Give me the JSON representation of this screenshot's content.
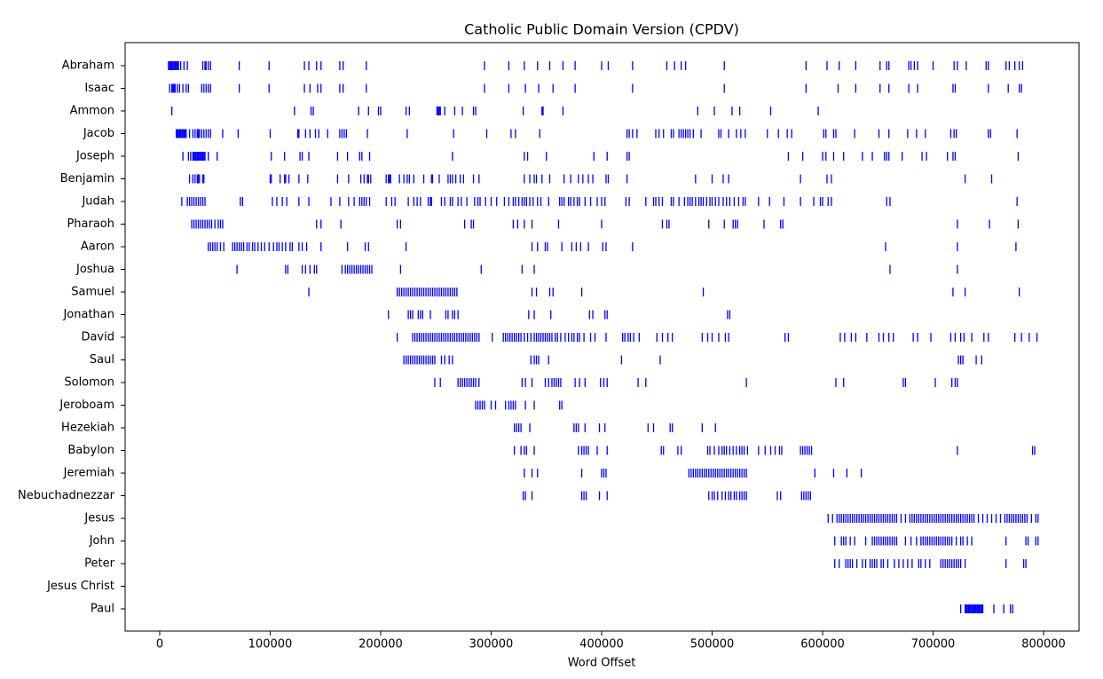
{
  "chart_data": {
    "type": "dispersion",
    "title": "Catholic Public Domain Version (CPDV)",
    "xlabel": "Word Offset",
    "categories": [
      "Abraham",
      "Isaac",
      "Ammon",
      "Jacob",
      "Joseph",
      "Benjamin",
      "Judah",
      "Pharaoh",
      "Aaron",
      "Joshua",
      "Samuel",
      "Jonathan",
      "David",
      "Saul",
      "Solomon",
      "Jeroboam",
      "Hezekiah",
      "Babylon",
      "Jeremiah",
      "Nebuchadnezzar",
      "Jesus",
      "John",
      "Peter",
      "Jesus Christ",
      "Paul"
    ],
    "offsets": [
      [
        8000,
        9000,
        10000,
        11000,
        12000,
        13000,
        14000,
        15000,
        16000,
        17000,
        19000,
        22000,
        25000,
        39000,
        41000,
        42000,
        44000,
        46000,
        72000,
        99000,
        131000,
        135000,
        142000,
        146000,
        163000,
        166000,
        187000,
        294000,
        316000,
        330000,
        342000,
        353000,
        365000,
        376000,
        400000,
        406000,
        428000,
        459000,
        466000,
        472000,
        476000,
        511000,
        585000,
        604000,
        615000,
        630000,
        652000,
        658000,
        660000,
        678000,
        680000,
        683000,
        686000,
        700000,
        719000,
        722000,
        730000,
        748000,
        750000,
        766000,
        769000,
        774000,
        778000,
        781000
      ],
      [
        9000,
        11000,
        12000,
        13000,
        14000,
        16000,
        18000,
        21000,
        24000,
        26000,
        38000,
        40000,
        42000,
        44000,
        46000,
        72000,
        99000,
        131000,
        136000,
        143000,
        146000,
        163000,
        166000,
        187000,
        294000,
        316000,
        331000,
        343000,
        356000,
        376000,
        428000,
        511000,
        585000,
        614000,
        630000,
        652000,
        660000,
        678000,
        686000,
        718000,
        720000,
        750000,
        768000,
        778000,
        780000
      ],
      [
        11000,
        122000,
        137000,
        139000,
        180000,
        189000,
        198000,
        200000,
        223000,
        226000,
        251000,
        252000,
        253000,
        254000,
        258000,
        267000,
        274000,
        284000,
        286000,
        329000,
        346000,
        347000,
        365000,
        487000,
        502000,
        518000,
        525000,
        553000,
        596000
      ],
      [
        15000,
        16000,
        17000,
        18000,
        19000,
        20000,
        21000,
        22000,
        23000,
        24000,
        27000,
        30000,
        32000,
        34000,
        35000,
        36000,
        38000,
        40000,
        42000,
        44000,
        46000,
        57000,
        71000,
        100000,
        125000,
        126000,
        132000,
        136000,
        141000,
        144000,
        152000,
        163000,
        165000,
        167000,
        169000,
        188000,
        224000,
        266000,
        296000,
        318000,
        322000,
        344000,
        423000,
        425000,
        428000,
        432000,
        449000,
        452000,
        456000,
        463000,
        465000,
        470000,
        472000,
        474000,
        476000,
        478000,
        480000,
        483000,
        490000,
        506000,
        508000,
        515000,
        522000,
        526000,
        530000,
        550000,
        560000,
        568000,
        572000,
        601000,
        603000,
        610000,
        612000,
        629000,
        651000,
        660000,
        677000,
        685000,
        693000,
        716000,
        719000,
        721000,
        750000,
        752000,
        776000
      ],
      [
        21000,
        26000,
        28000,
        30000,
        31000,
        32000,
        33000,
        34000,
        35000,
        36000,
        37000,
        38000,
        39000,
        40000,
        41000,
        44000,
        52000,
        101000,
        113000,
        127000,
        129000,
        135000,
        161000,
        170000,
        181000,
        183000,
        190000,
        265000,
        330000,
        333000,
        350000,
        393000,
        405000,
        423000,
        425000,
        569000,
        582000,
        600000,
        603000,
        610000,
        619000,
        636000,
        645000,
        656000,
        658000,
        660000,
        672000,
        690000,
        694000,
        713000,
        718000,
        720000,
        777000
      ],
      [
        27000,
        30000,
        32000,
        34000,
        35000,
        36000,
        39000,
        40000,
        100000,
        101000,
        109000,
        113000,
        114000,
        117000,
        126000,
        134000,
        161000,
        171000,
        182000,
        185000,
        188000,
        189000,
        191000,
        205000,
        207000,
        208000,
        209000,
        217000,
        221000,
        224000,
        226000,
        230000,
        239000,
        246000,
        247000,
        253000,
        261000,
        263000,
        265000,
        268000,
        272000,
        275000,
        284000,
        289000,
        330000,
        335000,
        339000,
        341000,
        346000,
        353000,
        366000,
        372000,
        379000,
        383000,
        388000,
        392000,
        404000,
        406000,
        423000,
        485000,
        500000,
        510000,
        515000,
        580000,
        604000,
        608000,
        729000,
        753000
      ],
      [
        20000,
        25000,
        27000,
        29000,
        31000,
        33000,
        35000,
        37000,
        39000,
        41000,
        73000,
        75000,
        102000,
        106000,
        111000,
        115000,
        126000,
        135000,
        155000,
        163000,
        171000,
        176000,
        181000,
        183000,
        185000,
        187000,
        190000,
        205000,
        210000,
        213000,
        225000,
        230000,
        233000,
        236000,
        243000,
        245000,
        246000,
        255000,
        258000,
        263000,
        265000,
        270000,
        273000,
        278000,
        285000,
        288000,
        290000,
        295000,
        300000,
        305000,
        312000,
        316000,
        320000,
        322000,
        325000,
        328000,
        330000,
        332000,
        335000,
        338000,
        342000,
        345000,
        352000,
        362000,
        364000,
        366000,
        370000,
        372000,
        375000,
        378000,
        380000,
        385000,
        390000,
        396000,
        400000,
        403000,
        422000,
        425000,
        440000,
        447000,
        449000,
        452000,
        455000,
        463000,
        465000,
        470000,
        475000,
        478000,
        480000,
        482000,
        485000,
        488000,
        490000,
        492000,
        495000,
        498000,
        500000,
        503000,
        506000,
        510000,
        513000,
        516000,
        520000,
        524000,
        528000,
        530000,
        542000,
        552000,
        565000,
        580000,
        592000,
        598000,
        600000,
        605000,
        608000,
        658000,
        661000,
        776000
      ],
      [
        29000,
        31000,
        33000,
        35000,
        37000,
        39000,
        41000,
        43000,
        45000,
        47000,
        50000,
        53000,
        55000,
        57000,
        142000,
        146000,
        164000,
        215000,
        218000,
        276000,
        282000,
        284000,
        320000,
        324000,
        330000,
        337000,
        361000,
        400000,
        455000,
        459000,
        461000,
        497000,
        511000,
        519000,
        521000,
        523000,
        547000,
        562000,
        564000,
        722000,
        751000,
        777000
      ],
      [
        44000,
        46000,
        48000,
        50000,
        52000,
        55000,
        58000,
        66000,
        68000,
        70000,
        72000,
        74000,
        76000,
        79000,
        81000,
        84000,
        86000,
        89000,
        92000,
        95000,
        99000,
        103000,
        106000,
        108000,
        111000,
        114000,
        118000,
        120000,
        126000,
        129000,
        133000,
        146000,
        170000,
        186000,
        189000,
        223000,
        337000,
        342000,
        349000,
        351000,
        364000,
        373000,
        377000,
        381000,
        388000,
        401000,
        404000,
        428000,
        657000,
        722000,
        775000
      ],
      [
        70000,
        114000,
        116000,
        129000,
        132000,
        136000,
        140000,
        142000,
        165000,
        168000,
        170000,
        172000,
        174000,
        176000,
        178000,
        180000,
        182000,
        184000,
        186000,
        188000,
        190000,
        192000,
        218000,
        291000,
        328000,
        339000,
        661000,
        722000
      ],
      [
        135000,
        215000,
        217000,
        219000,
        221000,
        223000,
        225000,
        227000,
        229000,
        231000,
        233000,
        235000,
        237000,
        239000,
        241000,
        243000,
        245000,
        247000,
        249000,
        251000,
        253000,
        255000,
        257000,
        259000,
        261000,
        263000,
        265000,
        267000,
        269000,
        337000,
        341000,
        353000,
        356000,
        382000,
        492000,
        718000,
        729000,
        778000
      ],
      [
        207000,
        225000,
        227000,
        229000,
        234000,
        236000,
        238000,
        245000,
        259000,
        261000,
        265000,
        267000,
        270000,
        334000,
        339000,
        354000,
        389000,
        392000,
        403000,
        405000,
        514000,
        516000
      ],
      [
        215000,
        229000,
        231000,
        233000,
        235000,
        237000,
        239000,
        241000,
        243000,
        245000,
        247000,
        249000,
        251000,
        253000,
        255000,
        257000,
        259000,
        261000,
        263000,
        265000,
        267000,
        269000,
        271000,
        273000,
        275000,
        277000,
        279000,
        281000,
        283000,
        285000,
        287000,
        289000,
        301000,
        311000,
        313000,
        315000,
        317000,
        319000,
        321000,
        323000,
        325000,
        327000,
        330000,
        333000,
        336000,
        339000,
        341000,
        343000,
        345000,
        347000,
        349000,
        351000,
        353000,
        355000,
        358000,
        360000,
        363000,
        367000,
        370000,
        373000,
        375000,
        378000,
        380000,
        384000,
        390000,
        394000,
        404000,
        419000,
        421000,
        424000,
        426000,
        429000,
        434000,
        450000,
        455000,
        460000,
        464000,
        491000,
        496000,
        500000,
        506000,
        512000,
        515000,
        566000,
        569000,
        616000,
        620000,
        626000,
        630000,
        640000,
        651000,
        655000,
        660000,
        664000,
        682000,
        686000,
        698000,
        716000,
        720000,
        725000,
        728000,
        735000,
        746000,
        750000,
        774000,
        780000,
        787000,
        794000
      ],
      [
        221000,
        223000,
        225000,
        227000,
        229000,
        231000,
        233000,
        235000,
        237000,
        239000,
        241000,
        243000,
        245000,
        247000,
        249000,
        255000,
        258000,
        262000,
        265000,
        336000,
        339000,
        341000,
        343000,
        352000,
        418000,
        453000,
        723000,
        725000,
        727000,
        739000,
        744000
      ],
      [
        249000,
        254000,
        270000,
        272000,
        274000,
        276000,
        278000,
        280000,
        282000,
        284000,
        286000,
        289000,
        328000,
        331000,
        337000,
        349000,
        352000,
        355000,
        357000,
        359000,
        361000,
        363000,
        376000,
        380000,
        385000,
        399000,
        402000,
        405000,
        433000,
        440000,
        531000,
        612000,
        619000,
        673000,
        675000,
        702000,
        717000,
        720000,
        722000
      ],
      [
        286000,
        288000,
        290000,
        292000,
        294000,
        300000,
        304000,
        313000,
        316000,
        318000,
        320000,
        322000,
        331000,
        339000,
        362000,
        364000
      ],
      [
        321000,
        323000,
        325000,
        327000,
        335000,
        375000,
        377000,
        379000,
        385000,
        398000,
        403000,
        442000,
        447000,
        462000,
        464000,
        491000,
        503000
      ],
      [
        321000,
        327000,
        330000,
        332000,
        339000,
        379000,
        382000,
        384000,
        386000,
        388000,
        396000,
        405000,
        454000,
        456000,
        469000,
        472000,
        496000,
        498000,
        502000,
        506000,
        509000,
        511000,
        513000,
        516000,
        519000,
        522000,
        525000,
        527000,
        529000,
        532000,
        542000,
        548000,
        553000,
        557000,
        561000,
        563000,
        580000,
        582000,
        584000,
        586000,
        588000,
        590000,
        722000,
        790000,
        792000
      ],
      [
        330000,
        337000,
        342000,
        382000,
        400000,
        402000,
        404000,
        479000,
        481000,
        483000,
        485000,
        487000,
        489000,
        491000,
        493000,
        495000,
        497000,
        499000,
        501000,
        503000,
        505000,
        507000,
        509000,
        511000,
        513000,
        515000,
        517000,
        519000,
        521000,
        523000,
        525000,
        527000,
        529000,
        531000,
        593000,
        610000,
        622000,
        635000
      ],
      [
        329000,
        331000,
        337000,
        382000,
        384000,
        386000,
        398000,
        405000,
        497000,
        500000,
        502000,
        505000,
        509000,
        512000,
        515000,
        517000,
        520000,
        522000,
        525000,
        527000,
        529000,
        531000,
        559000,
        562000,
        581000,
        583000,
        585000,
        587000,
        589000
      ],
      [
        605000,
        609000,
        613000,
        615000,
        617000,
        619000,
        621000,
        623000,
        625000,
        627000,
        629000,
        631000,
        633000,
        635000,
        637000,
        639000,
        641000,
        643000,
        645000,
        647000,
        649000,
        651000,
        653000,
        655000,
        657000,
        659000,
        661000,
        663000,
        665000,
        667000,
        671000,
        675000,
        679000,
        681000,
        683000,
        685000,
        687000,
        689000,
        691000,
        693000,
        695000,
        697000,
        699000,
        701000,
        703000,
        705000,
        707000,
        709000,
        711000,
        713000,
        715000,
        717000,
        719000,
        721000,
        723000,
        725000,
        727000,
        729000,
        731000,
        733000,
        735000,
        737000,
        741000,
        745000,
        749000,
        753000,
        757000,
        761000,
        765000,
        767000,
        769000,
        771000,
        773000,
        775000,
        777000,
        779000,
        781000,
        783000,
        785000,
        789000,
        793000,
        795000
      ],
      [
        611000,
        617000,
        619000,
        621000,
        625000,
        629000,
        639000,
        645000,
        647000,
        649000,
        651000,
        653000,
        655000,
        657000,
        659000,
        661000,
        663000,
        665000,
        667000,
        675000,
        680000,
        685000,
        689000,
        691000,
        693000,
        695000,
        697000,
        699000,
        701000,
        703000,
        705000,
        707000,
        709000,
        711000,
        713000,
        715000,
        717000,
        721000,
        725000,
        727000,
        731000,
        735000,
        766000,
        784000,
        786000,
        793000,
        795000
      ],
      [
        611000,
        615000,
        621000,
        623000,
        625000,
        627000,
        631000,
        636000,
        639000,
        643000,
        645000,
        647000,
        649000,
        653000,
        655000,
        659000,
        665000,
        669000,
        673000,
        677000,
        681000,
        687000,
        689000,
        693000,
        697000,
        707000,
        709000,
        711000,
        713000,
        715000,
        717000,
        719000,
        721000,
        723000,
        725000,
        729000,
        766000,
        782000,
        784000
      ],
      [],
      [
        725000,
        729000,
        730000,
        731000,
        732000,
        733000,
        734000,
        735000,
        736000,
        737000,
        738000,
        739000,
        740000,
        741000,
        742000,
        743000,
        744000,
        745000,
        755000,
        764000,
        770000,
        772000
      ]
    ],
    "color": "#0000ff",
    "label_color": "#0000ff",
    "marker": "|",
    "xlim": [
      -31300,
      832100
    ],
    "xticks": [
      0,
      100000,
      200000,
      300000,
      400000,
      500000,
      600000,
      700000,
      800000
    ]
  }
}
